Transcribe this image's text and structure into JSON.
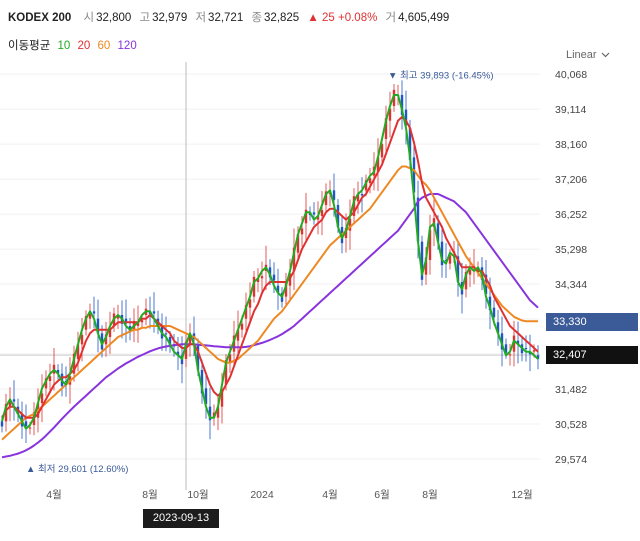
{
  "header": {
    "name": "KODEX 200",
    "open_label": "시",
    "open": "32,800",
    "high_label": "고",
    "high": "32,979",
    "low_label": "저",
    "low": "32,721",
    "close_label": "종",
    "close": "32,825",
    "change": "▲ 25 +0.08%",
    "volume_label": "거",
    "volume": "4,605,499"
  },
  "ma_legend": {
    "title": "이동평균",
    "ma10": "10",
    "ma20": "20",
    "ma60": "60",
    "ma120": "120"
  },
  "scale_button": {
    "label": "Linear"
  },
  "colors": {
    "ma10": "#22aa22",
    "ma20": "#e03131",
    "ma60": "#ee8822",
    "ma120": "#8833dd",
    "up": "#e03131",
    "down": "#1e56c8",
    "accent": "#3a5a98"
  },
  "crosshair_label": "2023-09-13",
  "price_tags": {
    "ma_value": "33,330",
    "current": "32,407"
  },
  "chart_data": {
    "type": "line",
    "title": "",
    "ylim": [
      29000,
      40400
    ],
    "y_ticks": [
      40068,
      39114,
      38160,
      37206,
      36252,
      35298,
      34344,
      33390,
      32436,
      31482,
      30528,
      29574
    ],
    "y_tick_labels": [
      "40,068",
      "39,114",
      "38,160",
      "37,206",
      "36,252",
      "35,298",
      "34,344",
      "",
      "",
      "31,482",
      "30,528",
      "29,574"
    ],
    "x_tick_labels": [
      "4월",
      "8월",
      "10월",
      "2024",
      "4월",
      "6월",
      "8월",
      "12월"
    ],
    "x_tick_index": [
      13,
      37,
      49,
      65,
      82,
      95,
      107,
      130
    ],
    "max_label": "▼ 최고 39,893 (-16.45%)",
    "min_label": "▲ 최저 29,601 (12.60%)",
    "crosshair_index": 46,
    "close_price_level": 32407,
    "series": [
      {
        "name": "10",
        "values": [
          30600,
          31000,
          31200,
          31000,
          30800,
          30600,
          30400,
          30500,
          30700,
          31100,
          31500,
          31700,
          31900,
          32000,
          31900,
          31700,
          31600,
          31900,
          32300,
          32700,
          33100,
          33400,
          33600,
          33400,
          33000,
          32700,
          32900,
          33200,
          33400,
          33500,
          33400,
          33200,
          33100,
          33200,
          33300,
          33500,
          33600,
          33600,
          33400,
          33200,
          33000,
          32900,
          32700,
          32500,
          32400,
          32300,
          32700,
          33000,
          32700,
          32000,
          31500,
          31000,
          30700,
          30700,
          31000,
          31600,
          32200,
          32500,
          32800,
          33100,
          33400,
          33700,
          34000,
          34400,
          34500,
          34700,
          34800,
          34600,
          34300,
          34100,
          34000,
          34300,
          34700,
          35200,
          35700,
          36000,
          36300,
          36300,
          36100,
          36200,
          36500,
          36800,
          36900,
          36500,
          35900,
          35600,
          35800,
          36200,
          36600,
          36800,
          36900,
          37100,
          37300,
          37400,
          37800,
          38300,
          38800,
          39200,
          39500,
          39500,
          39100,
          38600,
          37800,
          36700,
          35500,
          34600,
          35000,
          35900,
          36000,
          35500,
          35000,
          34900,
          35200,
          35100,
          34400,
          34200,
          34600,
          34800,
          34700,
          34800,
          34600,
          34000,
          33700,
          33300,
          33000,
          32700,
          32400,
          32500,
          32800,
          32700,
          32600,
          32500,
          32500,
          32400,
          32300
        ]
      },
      {
        "name": "20",
        "values": [
          30700,
          30900,
          31000,
          31000,
          30900,
          30800,
          30700,
          30700,
          30700,
          30800,
          31000,
          31200,
          31400,
          31600,
          31700,
          31800,
          31800,
          31900,
          32000,
          32200,
          32500,
          32800,
          33000,
          33100,
          33100,
          33100,
          33100,
          33100,
          33200,
          33300,
          33300,
          33300,
          33300,
          33300,
          33300,
          33400,
          33400,
          33500,
          33400,
          33300,
          33200,
          33100,
          33000,
          32800,
          32700,
          32600,
          32600,
          32700,
          32700,
          32500,
          32200,
          31900,
          31600,
          31400,
          31300,
          31400,
          31600,
          31800,
          32100,
          32400,
          32700,
          33000,
          33300,
          33600,
          33800,
          34100,
          34300,
          34400,
          34400,
          34400,
          34400,
          34400,
          34500,
          34700,
          35000,
          35300,
          35500,
          35700,
          35900,
          36000,
          36100,
          36300,
          36400,
          36400,
          36300,
          36200,
          36100,
          36200,
          36300,
          36500,
          36700,
          36800,
          37000,
          37200,
          37400,
          37600,
          37900,
          38200,
          38500,
          38800,
          38900,
          38800,
          38600,
          38200,
          37700,
          37100,
          36700,
          36500,
          36300,
          36100,
          35900,
          35600,
          35400,
          35200,
          35000,
          34800,
          34800,
          34800,
          34800,
          34700,
          34700,
          34500,
          34300,
          34000,
          33800,
          33600,
          33400,
          33200,
          33100,
          33000,
          32900,
          32800,
          32700,
          32600,
          32500
        ]
      },
      {
        "name": "60",
        "values": [
          30100,
          30200,
          30300,
          30400,
          30500,
          30600,
          30700,
          30750,
          30800,
          30900,
          31000,
          31100,
          31200,
          31300,
          31400,
          31500,
          31600,
          31700,
          31800,
          31900,
          32000,
          32100,
          32200,
          32300,
          32400,
          32500,
          32600,
          32700,
          32800,
          32900,
          32950,
          33000,
          33050,
          33100,
          33100,
          33150,
          33150,
          33200,
          33200,
          33200,
          33200,
          33200,
          33200,
          33150,
          33100,
          33050,
          33000,
          32950,
          32900,
          32800,
          32700,
          32600,
          32500,
          32400,
          32300,
          32250,
          32200,
          32200,
          32250,
          32300,
          32400,
          32500,
          32600,
          32700,
          32800,
          32950,
          33100,
          33250,
          33400,
          33500,
          33600,
          33750,
          33900,
          34050,
          34200,
          34350,
          34500,
          34650,
          34800,
          34950,
          35100,
          35250,
          35400,
          35500,
          35600,
          35700,
          35800,
          35900,
          36000,
          36100,
          36200,
          36300,
          36400,
          36550,
          36700,
          36850,
          37000,
          37150,
          37300,
          37450,
          37550,
          37550,
          37500,
          37450,
          37300,
          37150,
          37050,
          36900,
          36700,
          36500,
          36300,
          36100,
          35900,
          35700,
          35500,
          35300,
          35100,
          34950,
          34800,
          34650,
          34500,
          34350,
          34200,
          34050,
          33900,
          33750,
          33650,
          33550,
          33450,
          33400,
          33350,
          33330,
          33330,
          33330,
          33330
        ]
      },
      {
        "name": "120",
        "values": [
          29620,
          29640,
          29660,
          29690,
          29720,
          29760,
          29810,
          29870,
          29940,
          30020,
          30110,
          30210,
          30320,
          30430,
          30550,
          30670,
          30780,
          30890,
          31000,
          31100,
          31200,
          31300,
          31400,
          31500,
          31600,
          31700,
          31800,
          31880,
          31960,
          32040,
          32110,
          32180,
          32240,
          32300,
          32360,
          32410,
          32460,
          32510,
          32550,
          32590,
          32620,
          32640,
          32660,
          32680,
          32690,
          32700,
          32700,
          32700,
          32700,
          32690,
          32680,
          32670,
          32660,
          32650,
          32640,
          32630,
          32620,
          32620,
          32620,
          32620,
          32620,
          32630,
          32650,
          32680,
          32710,
          32740,
          32780,
          32820,
          32870,
          32920,
          32980,
          33050,
          33120,
          33200,
          33300,
          33400,
          33500,
          33600,
          33700,
          33800,
          33900,
          34000,
          34100,
          34200,
          34300,
          34400,
          34500,
          34600,
          34700,
          34800,
          34900,
          35000,
          35100,
          35200,
          35300,
          35400,
          35500,
          35600,
          35700,
          35800,
          35950,
          36100,
          36250,
          36400,
          36600,
          36700,
          36750,
          36800,
          36800,
          36800,
          36750,
          36700,
          36650,
          36600,
          36500,
          36400,
          36300,
          36150,
          36000,
          35850,
          35700,
          35550,
          35400,
          35250,
          35100,
          34950,
          34800,
          34650,
          34500,
          34350,
          34200,
          34050,
          33900,
          33800,
          33700
        ]
      }
    ]
  }
}
